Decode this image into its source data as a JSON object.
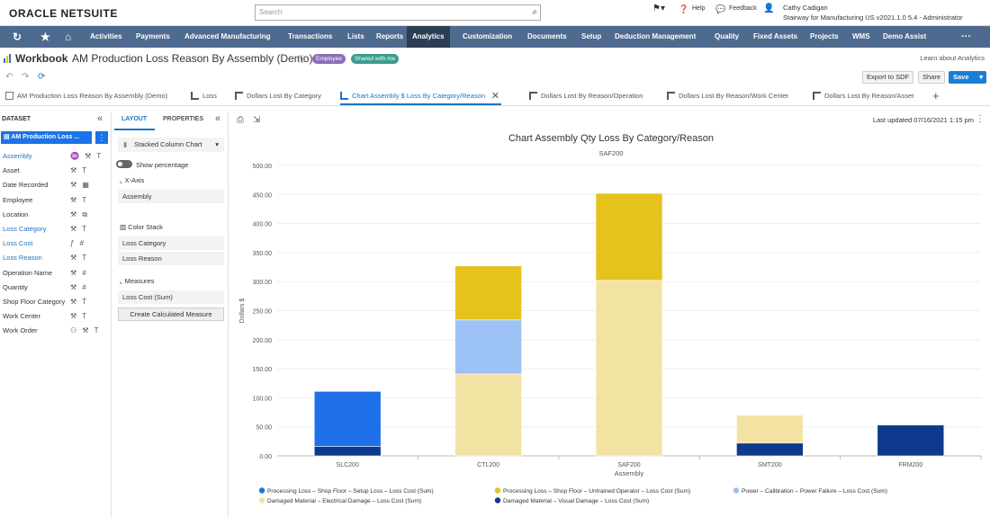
{
  "app": {
    "logo": "ORACLE NETSUITE",
    "search_placeholder": "Search",
    "help": "Help",
    "feedback": "Feedback",
    "user_name": "Cathy Cadigan",
    "user_role": "Stairway for Manufacturing US v2021.1.0 5.4 - Administrator"
  },
  "nav": {
    "items": [
      "Activities",
      "Payments",
      "Advanced Manufacturing",
      "Transactions",
      "Lists",
      "Reports",
      "Analytics",
      "Customization",
      "Documents",
      "Setup",
      "Deduction Management",
      "Quality",
      "Fixed Assets",
      "Projects",
      "WMS",
      "Demo Assist"
    ],
    "active": "Analytics"
  },
  "title": {
    "workbook": "Workbook",
    "name": "AM Production Loss Reason By Assembly (Demo)",
    "badge_employee": "Employee",
    "badge_shared": "Shared with me",
    "learn": "Learn about Analytics"
  },
  "toolbar": {
    "export": "Export to SDF",
    "share": "Share",
    "save": "Save"
  },
  "tabs": [
    "AM Production Loss Reason By Assembly (Demo)",
    "Loss",
    "Dollars Lost By Category",
    "Chart Assembly $ Loss By Category/Reason",
    "Dollars Lost By Reason/Operation",
    "Dollars Lost By Reason/Work Center",
    "Dollars Lost By Reason/Asset"
  ],
  "active_tab": "Chart Assembly $ Loss By Category/Reason",
  "dataset": {
    "header": "DATASET",
    "main": "AM Production Loss ...",
    "fields": [
      {
        "label": "Assembly",
        "blue": true,
        "icons": "♒ ⚒ T"
      },
      {
        "label": "Asset",
        "blue": false,
        "icons": "⚒ T"
      },
      {
        "label": "Date Recorded",
        "blue": false,
        "icons": "⚒ ▦"
      },
      {
        "label": "Employee",
        "blue": false,
        "icons": "⚒ T"
      },
      {
        "label": "Location",
        "blue": false,
        "icons": "⚒ ⧉"
      },
      {
        "label": "Loss Category",
        "blue": true,
        "icons": "⚒ T"
      },
      {
        "label": "Loss Cost",
        "blue": true,
        "icons": "ƒ #"
      },
      {
        "label": "Loss Reason",
        "blue": true,
        "icons": "⚒ T"
      },
      {
        "label": "Operation Name",
        "blue": false,
        "icons": "⚒ #"
      },
      {
        "label": "Quantity",
        "blue": false,
        "icons": "⚒ #"
      },
      {
        "label": "Shop Floor Category",
        "blue": false,
        "icons": "⚒ T"
      },
      {
        "label": "Work Center",
        "blue": false,
        "icons": "⚒ T"
      },
      {
        "label": "Work Order",
        "blue": false,
        "icons": "⚇ ⚒ T"
      }
    ]
  },
  "layout": {
    "tab_layout": "LAYOUT",
    "tab_properties": "PROPERTIES",
    "chart_type": "Stacked Column Chart",
    "show_percentage": "Show percentage",
    "xaxis_label": "X-Axis",
    "xaxis_value": "Assembly",
    "color_stack_label": "Color Stack",
    "color_stack_values": [
      "Loss Category",
      "Loss Reason"
    ],
    "measures_label": "Measures",
    "measure_value": "Loss Cost  (Sum)",
    "calc_button": "Create Calculated Measure"
  },
  "chart_header": {
    "last_updated": "Last updated 07/16/2021 1:15 pm"
  },
  "colors": {
    "nav": "#4f6a8f",
    "accent": "#1a73e8",
    "s1": "#1f6fe8",
    "s2": "#e6c21c",
    "s3": "#9cc2f5",
    "s4": "#f3e3a3",
    "s5": "#0d3a8c"
  },
  "chart_data": {
    "type": "bar",
    "title": "Chart Assembly Qty Loss By Category/Reason",
    "subtitle": "SAF200",
    "xlabel": "Assembly",
    "ylabel": "Dollars $",
    "ylim": [
      0,
      500
    ],
    "yticks": [
      "0.00",
      "50.00",
      "100.00",
      "150.00",
      "200.00",
      "250.00",
      "300.00",
      "350.00",
      "400.00",
      "450.00",
      "500.00"
    ],
    "categories": [
      "SLC200",
      "CTL200",
      "SAF200",
      "SMT200",
      "FRM200"
    ],
    "series": [
      {
        "name": "Damaged Material – Visual Damage – Loss Cost (Sum)",
        "color": "#0d3a8c",
        "values": [
          16,
          0,
          0,
          22,
          53
        ]
      },
      {
        "name": "Damaged Material – Electrical Damage – Loss Cost (Sum)",
        "color": "#f3e3a3",
        "values": [
          0,
          141,
          302,
          48,
          0
        ]
      },
      {
        "name": "Power – Calibration – Power Failure – Loss Cost (Sum)",
        "color": "#9cc2f5",
        "values": [
          0,
          93,
          0,
          0,
          0
        ]
      },
      {
        "name": "Processing Loss – Shop Floor – Untrained Operator – Loss Cost (Sum)",
        "color": "#e6c21c",
        "values": [
          0,
          93,
          150,
          0,
          0
        ]
      },
      {
        "name": "Processing Loss – Shop Floor – Setup Loss – Loss Cost (Sum)",
        "color": "#1f6fe8",
        "values": [
          95,
          0,
          0,
          0,
          0
        ]
      }
    ],
    "legend_order": [
      4,
      3,
      2,
      1,
      0
    ],
    "legend": "bottom"
  }
}
